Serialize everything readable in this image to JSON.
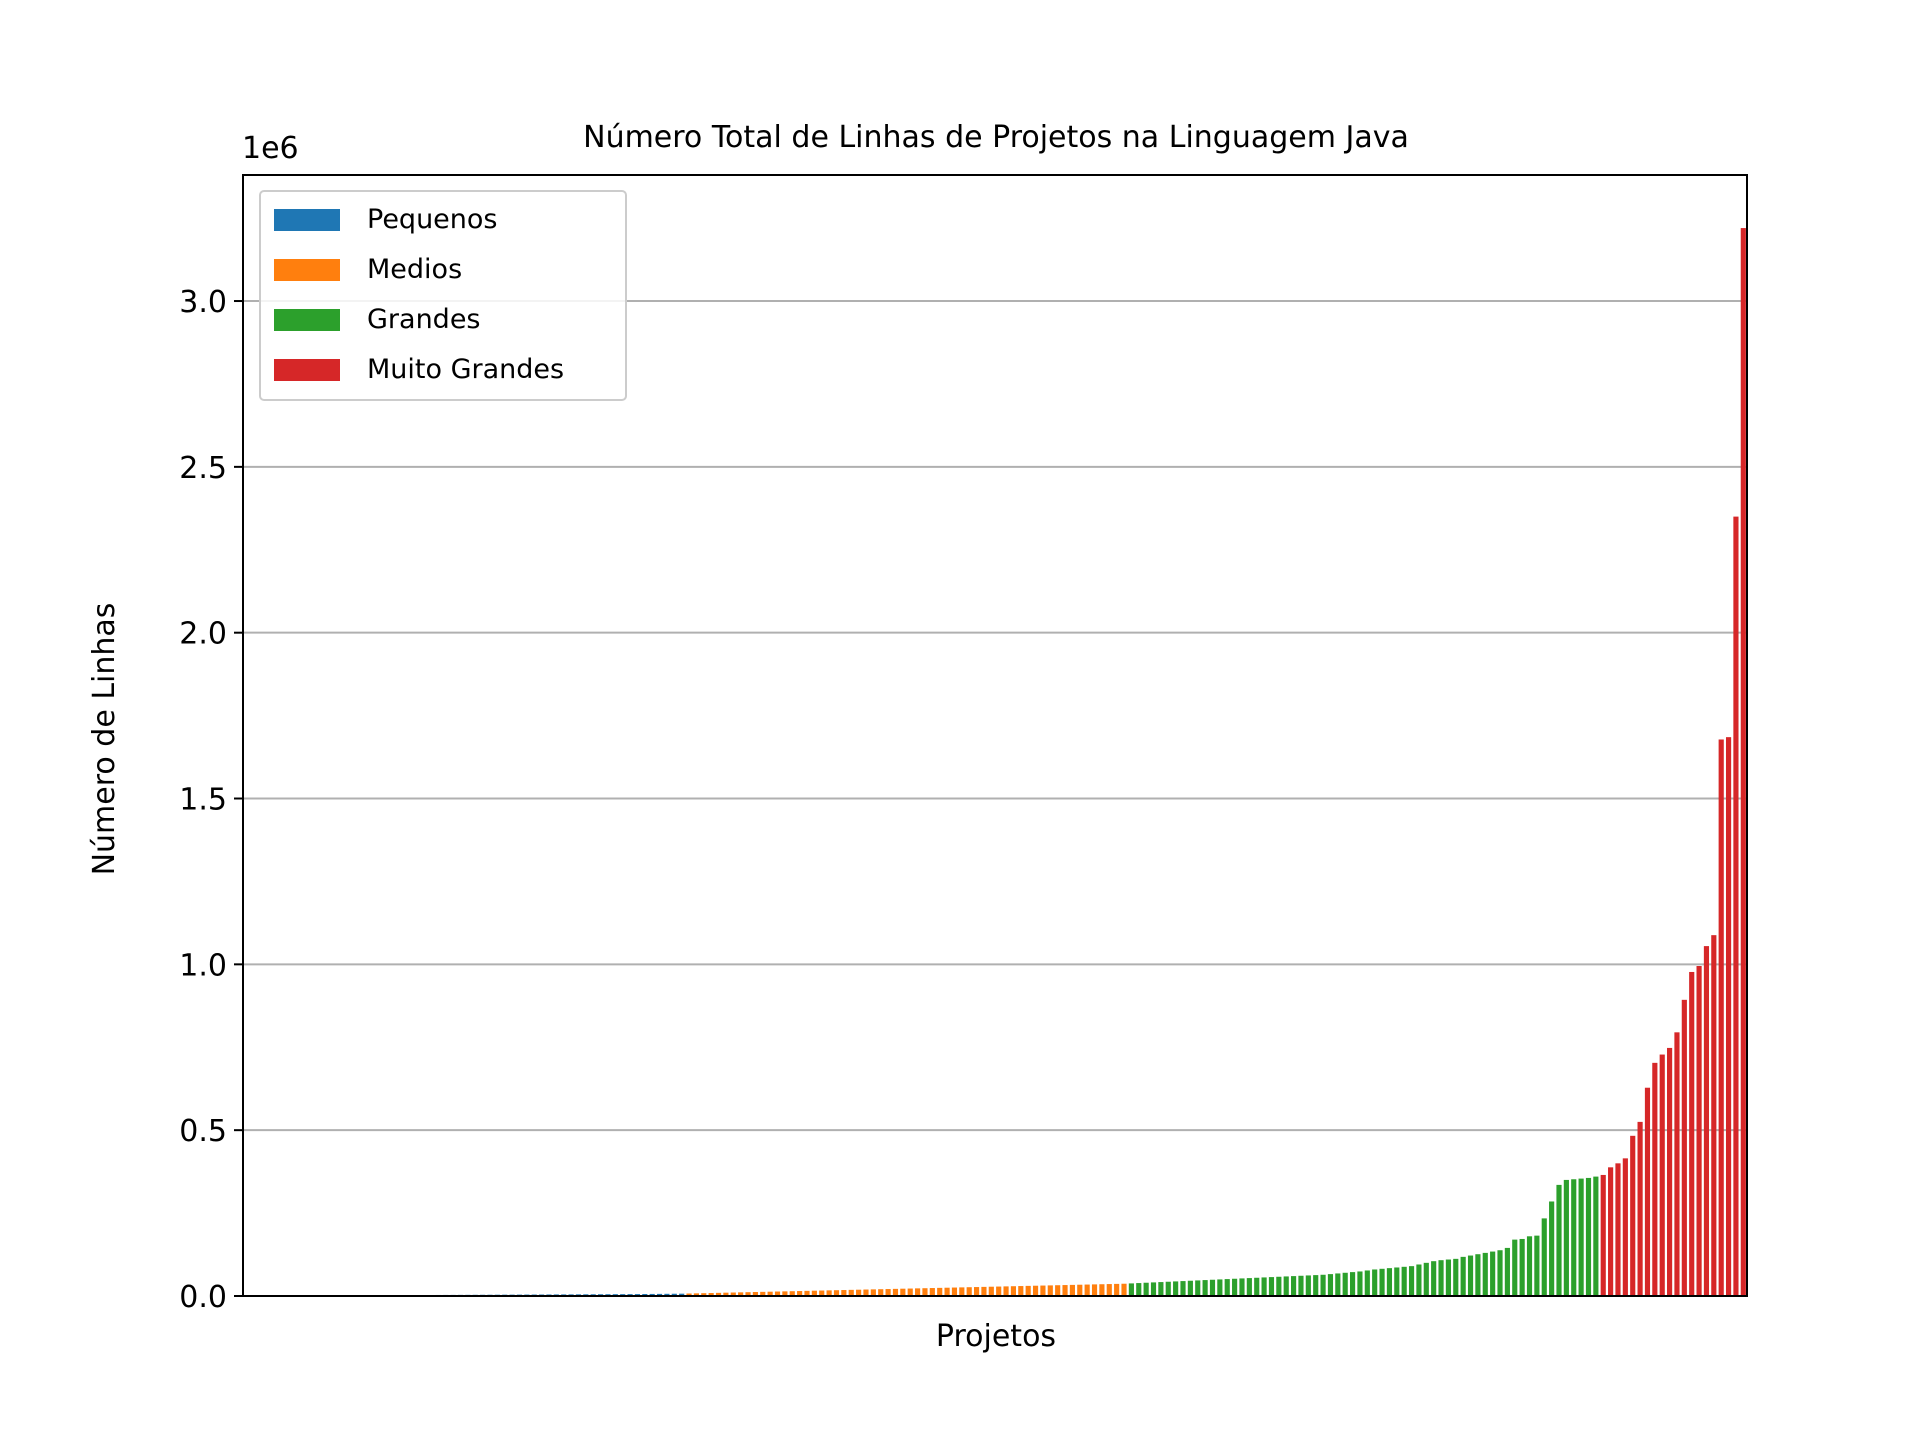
{
  "chart_data": {
    "type": "bar",
    "title": "Número Total de Linhas de Projetos na Linguagem Java",
    "xlabel": "Projetos",
    "ylabel": "Número de Linhas",
    "y_offset_label": "1e6",
    "ylim": [
      0,
      3.38
    ],
    "y_unit_multiplier": 1000000,
    "yticks": [
      0.0,
      0.5,
      1.0,
      1.5,
      2.0,
      2.5,
      3.0
    ],
    "ytick_labels": [
      "0.0",
      "0.5",
      "1.0",
      "1.5",
      "2.0",
      "2.5",
      "3.0"
    ],
    "grid": "horizontal",
    "legend_position": "top-left",
    "series": [
      {
        "name": "Pequenos",
        "color": "#1f77b4",
        "values": [
          0.0005,
          0.0006,
          0.0007,
          0.0008,
          0.0009,
          0.001,
          0.0011,
          0.0012,
          0.0013,
          0.0014,
          0.0015,
          0.0016,
          0.0017,
          0.0018,
          0.0019,
          0.002,
          0.0021,
          0.0022,
          0.0023,
          0.0024,
          0.0025,
          0.0026,
          0.0027,
          0.0028,
          0.0029,
          0.003,
          0.0031,
          0.0032,
          0.0033,
          0.0034,
          0.0035,
          0.0036,
          0.0037,
          0.0038,
          0.0039,
          0.004,
          0.0041,
          0.0042,
          0.0043,
          0.0044,
          0.0045,
          0.0046,
          0.0047,
          0.0048,
          0.0049,
          0.005,
          0.0051,
          0.0052,
          0.0053,
          0.0054,
          0.0055,
          0.0056,
          0.0057,
          0.0058,
          0.006,
          0.0062,
          0.0064,
          0.0066,
          0.0068,
          0.007
        ]
      },
      {
        "name": "Medios",
        "color": "#ff7f0e",
        "values": [
          0.0075,
          0.008,
          0.0085,
          0.009,
          0.0095,
          0.01,
          0.0105,
          0.011,
          0.0115,
          0.012,
          0.0125,
          0.013,
          0.0135,
          0.014,
          0.0145,
          0.015,
          0.0155,
          0.016,
          0.0165,
          0.017,
          0.0175,
          0.018,
          0.0185,
          0.019,
          0.0195,
          0.02,
          0.0205,
          0.021,
          0.0215,
          0.022,
          0.0225,
          0.023,
          0.0235,
          0.024,
          0.0245,
          0.025,
          0.0255,
          0.026,
          0.0265,
          0.027,
          0.0275,
          0.028,
          0.0285,
          0.029,
          0.0295,
          0.03,
          0.0305,
          0.031,
          0.0315,
          0.032,
          0.0325,
          0.033,
          0.0335,
          0.034,
          0.0345,
          0.035,
          0.0355,
          0.036,
          0.0365,
          0.037
        ]
      },
      {
        "name": "Grandes",
        "color": "#2ca02c",
        "values": [
          0.038,
          0.039,
          0.04,
          0.041,
          0.042,
          0.043,
          0.044,
          0.045,
          0.046,
          0.047,
          0.048,
          0.049,
          0.05,
          0.051,
          0.052,
          0.053,
          0.054,
          0.055,
          0.056,
          0.057,
          0.058,
          0.059,
          0.06,
          0.061,
          0.062,
          0.063,
          0.064,
          0.066,
          0.068,
          0.07,
          0.072,
          0.074,
          0.077,
          0.08,
          0.082,
          0.084,
          0.086,
          0.088,
          0.09,
          0.095,
          0.1,
          0.105,
          0.108,
          0.11,
          0.112,
          0.118,
          0.122,
          0.126,
          0.13,
          0.134,
          0.138,
          0.145,
          0.17,
          0.172,
          0.18,
          0.182,
          0.234,
          0.285,
          0.335,
          0.35,
          0.352,
          0.354,
          0.356,
          0.36
        ]
      },
      {
        "name": "Muito Grandes",
        "color": "#d62728",
        "values": [
          0.365,
          0.388,
          0.4,
          0.415,
          0.483,
          0.525,
          0.628,
          0.703,
          0.728,
          0.748,
          0.795,
          0.893,
          0.977,
          0.995,
          1.055,
          1.088,
          1.678,
          1.685,
          2.35,
          3.22
        ]
      }
    ]
  }
}
